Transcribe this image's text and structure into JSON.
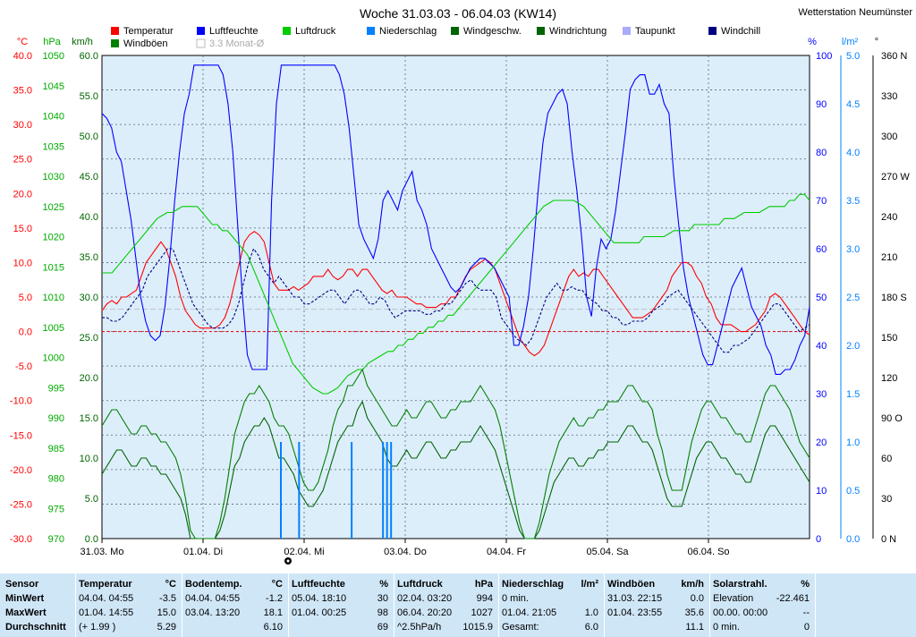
{
  "chart_data": {
    "type": "line",
    "title": "Woche 31.03.03 - 06.04.03 (KW14)",
    "station": "Wetterstation Neumünster",
    "legend": [
      {
        "name": "Temperatur",
        "color": "#ff0000"
      },
      {
        "name": "Luftfeuchte",
        "color": "#0000ff"
      },
      {
        "name": "Luftdruck",
        "color": "#00cc00"
      },
      {
        "name": "Niederschlag",
        "color": "#0080ff"
      },
      {
        "name": "Windgeschw.",
        "color": "#006400"
      },
      {
        "name": "Windrichtung",
        "color": "#006400"
      },
      {
        "name": "Taupunkt",
        "color": "#aaaaff"
      },
      {
        "name": "Windchill",
        "color": "#000080"
      },
      {
        "name": "Windböen",
        "color": "#008000"
      },
      {
        "name": "3.3 Monat-Ø",
        "color": "#cccccc"
      }
    ],
    "axes": {
      "temp": {
        "unit": "°C",
        "color": "#ff0000",
        "ticks": [
          "40.0",
          "35.0",
          "30.0",
          "25.0",
          "20.0",
          "15.0",
          "10.0",
          "5.0",
          "0.0",
          "-5.0",
          "-10.0",
          "-15.0",
          "-20.0",
          "-25.0",
          "-30.0"
        ],
        "range": [
          -30,
          40
        ]
      },
      "pressure": {
        "unit": "hPa",
        "color": "#00aa00",
        "ticks": [
          "1050",
          "1045",
          "1040",
          "1035",
          "1030",
          "1025",
          "1020",
          "1015",
          "1010",
          "1005",
          "1000",
          "995",
          "990",
          "985",
          "980",
          "975",
          "970"
        ],
        "range": [
          970,
          1050
        ]
      },
      "wind": {
        "unit": "km/h",
        "color": "#006400",
        "ticks": [
          "60.0",
          "55.0",
          "50.0",
          "45.0",
          "40.0",
          "35.0",
          "30.0",
          "25.0",
          "20.0",
          "15.0",
          "10.0",
          "5.0",
          "0.0"
        ],
        "range": [
          0,
          60
        ]
      },
      "humidity": {
        "unit": "%",
        "color": "#0000ff",
        "ticks": [
          "100",
          "90",
          "80",
          "70",
          "60",
          "50",
          "40",
          "30",
          "20",
          "10",
          "0"
        ],
        "range": [
          0,
          100
        ]
      },
      "rain": {
        "unit": "l/m²",
        "color": "#0080ff",
        "ticks": [
          "5.0",
          "4.5",
          "4.0",
          "3.5",
          "3.0",
          "2.5",
          "2.0",
          "1.5",
          "1.0",
          "0.5",
          "0.0"
        ],
        "range": [
          0,
          5
        ]
      },
      "direction": {
        "unit": "°",
        "color": "#000000",
        "ticks": [
          "360 N",
          "330",
          "300",
          "270 W",
          "240",
          "210",
          "180 S",
          "150",
          "120",
          "90 O",
          "60",
          "30",
          "0 N"
        ],
        "range": [
          0,
          360
        ]
      }
    },
    "x_ticks": [
      "31.03. Mo",
      "01.04. Di",
      "02.04. Mi",
      "03.04. Do",
      "04.04. Fr",
      "05.04. Sa",
      "06.04. So"
    ],
    "series": [
      {
        "name": "Temperatur",
        "color": "#ff0000",
        "axis": "temp",
        "values": [
          3,
          4,
          4.5,
          4,
          5,
          5,
          5.5,
          6,
          8,
          10,
          11,
          12,
          13,
          12,
          10,
          8,
          5,
          3,
          2,
          1,
          0.5,
          0.5,
          0.5,
          0.5,
          1,
          2,
          4,
          7,
          10,
          13,
          14,
          14.5,
          14,
          13,
          10,
          7,
          6,
          6,
          6,
          6.5,
          6,
          6.5,
          7,
          8,
          8,
          8,
          9,
          8,
          7.5,
          8,
          9,
          9,
          8,
          9,
          9,
          8,
          7,
          6,
          5.5,
          6,
          5,
          5,
          5,
          4.5,
          4,
          4,
          3.5,
          3.5,
          3.5,
          4,
          4,
          5,
          5,
          6.5,
          8,
          9,
          9.5,
          10,
          10.5,
          10,
          9,
          7,
          5,
          3,
          1,
          -1,
          -2,
          -3,
          -3.5,
          -3,
          -2,
          0,
          2,
          4,
          6,
          8,
          9,
          8,
          8.5,
          8,
          9,
          9,
          8,
          7,
          6,
          5,
          4,
          3,
          2,
          2,
          2,
          2.5,
          3,
          4,
          5,
          6,
          8,
          9,
          10,
          10,
          9.5,
          8,
          7,
          5,
          4,
          2,
          1,
          1,
          1,
          0.5,
          0,
          0,
          0.5,
          1,
          2,
          3,
          5,
          5.5,
          5,
          4,
          3,
          2,
          1,
          0,
          -0.5
        ]
      },
      {
        "name": "Luftfeuchte",
        "color": "#0000ff",
        "axis": "humidity",
        "values": [
          88,
          87,
          85,
          80,
          78,
          72,
          66,
          58,
          50,
          45,
          42,
          41,
          42,
          48,
          58,
          70,
          80,
          88,
          92,
          98,
          98,
          98,
          98,
          98,
          98,
          96,
          90,
          80,
          65,
          50,
          38,
          35,
          35,
          35,
          35,
          70,
          90,
          98,
          98,
          98,
          98,
          98,
          98,
          98,
          98,
          98,
          98,
          98,
          98,
          96,
          92,
          85,
          75,
          65,
          62,
          60,
          58,
          62,
          70,
          72,
          70,
          68,
          72,
          74,
          76,
          70,
          68,
          65,
          60,
          58,
          56,
          54,
          52,
          51,
          52,
          54,
          56,
          57,
          58,
          58,
          57,
          56,
          54,
          52,
          50,
          40,
          40,
          44,
          50,
          60,
          72,
          82,
          88,
          90,
          92,
          93,
          90,
          80,
          72,
          62,
          50,
          46,
          56,
          62,
          60,
          62,
          68,
          76,
          84,
          93,
          95,
          96,
          96,
          92,
          92,
          94,
          90,
          88,
          75,
          65,
          56,
          50,
          46,
          42,
          38,
          36,
          36,
          40,
          44,
          48,
          52,
          54,
          56,
          52,
          48,
          46,
          44,
          40,
          38,
          34,
          34,
          35,
          35,
          37,
          40,
          42,
          48
        ]
      },
      {
        "name": "Luftdruck",
        "color": "#00cc00",
        "axis": "pressure",
        "values": [
          1014,
          1014,
          1014,
          1015,
          1016,
          1017,
          1018,
          1019,
          1020,
          1021,
          1022,
          1023,
          1023.5,
          1024,
          1024,
          1024.5,
          1025,
          1025,
          1025,
          1025,
          1024,
          1023,
          1022,
          1022,
          1021,
          1021,
          1020,
          1019,
          1018,
          1017,
          1015,
          1013,
          1011,
          1009,
          1007,
          1005,
          1003,
          1001,
          999,
          998,
          997,
          996,
          995,
          994.5,
          994,
          994,
          994.5,
          995,
          996,
          997,
          997.5,
          998,
          998,
          999,
          999.5,
          1000,
          1000.5,
          1001,
          1001,
          1002,
          1002,
          1003,
          1003,
          1004,
          1004,
          1005,
          1005,
          1006,
          1006,
          1007,
          1007,
          1008,
          1009,
          1010,
          1011,
          1012,
          1013,
          1014,
          1015,
          1016,
          1017,
          1018,
          1019,
          1020,
          1021,
          1022,
          1023,
          1024,
          1025,
          1025.5,
          1026,
          1026,
          1026,
          1026,
          1026,
          1025.5,
          1025,
          1024,
          1023,
          1022,
          1021,
          1020,
          1019,
          1019,
          1019,
          1019,
          1019,
          1019,
          1020,
          1020,
          1020,
          1020,
          1020,
          1020.5,
          1021,
          1021,
          1021,
          1021,
          1022,
          1022,
          1022,
          1022,
          1022,
          1022,
          1023,
          1023,
          1023,
          1023.5,
          1024,
          1024,
          1024,
          1024,
          1024.5,
          1025,
          1025,
          1025,
          1025,
          1026,
          1026,
          1027,
          1027,
          1026
        ]
      },
      {
        "name": "Taupunkt",
        "color": "#000080",
        "axis": "temp",
        "dashed": true,
        "values": [
          2,
          2,
          1.5,
          1.5,
          2,
          3,
          4,
          5,
          6,
          8,
          9,
          10,
          11,
          12,
          12,
          10,
          8,
          6,
          4,
          3,
          2,
          1,
          0.5,
          0.5,
          0.5,
          1,
          2,
          4,
          7,
          10,
          12,
          11,
          9,
          8,
          7,
          8,
          7,
          6,
          5,
          5,
          4,
          4,
          4.5,
          5,
          5.5,
          6,
          6,
          5,
          4,
          5,
          6,
          6,
          5,
          4,
          4,
          5,
          4.5,
          3,
          2,
          2.5,
          3,
          3,
          3,
          3,
          2.5,
          2.5,
          3,
          3,
          4,
          4,
          5,
          6,
          7,
          7.5,
          6.5,
          6,
          6,
          6,
          5,
          2,
          1,
          0,
          -1,
          -1.5,
          -2,
          -1,
          1,
          3,
          5,
          6,
          7,
          6,
          6,
          6.5,
          6,
          6,
          5,
          4.5,
          4,
          3,
          3,
          2,
          2,
          1,
          1,
          1.5,
          1.5,
          1.5,
          2,
          3,
          3.5,
          4,
          5,
          5.5,
          6,
          5,
          4,
          3,
          2,
          1,
          0,
          -1,
          -2,
          -3,
          -3,
          -2,
          -2,
          -1.5,
          -1,
          0,
          1,
          2,
          3,
          4,
          4,
          3,
          2,
          1,
          0,
          0.5,
          1
        ]
      },
      {
        "name": "Windgeschw.",
        "color": "#006400",
        "axis": "wind",
        "values": [
          8,
          9,
          10,
          11,
          11,
          10,
          9,
          9,
          10,
          10,
          9,
          9,
          8,
          8,
          7,
          6,
          5,
          3,
          0,
          0,
          0,
          0,
          0,
          0,
          1,
          3,
          6,
          9,
          10,
          12,
          13,
          14,
          14,
          15,
          14,
          12,
          10,
          10,
          9,
          8,
          6,
          5,
          4,
          4,
          5,
          6,
          8,
          10,
          12,
          13,
          14,
          14,
          16,
          17,
          15,
          14,
          13,
          12,
          10,
          9,
          9,
          10,
          11,
          10,
          10,
          11,
          12,
          12,
          11,
          10,
          10,
          11,
          11,
          12,
          12,
          12,
          13,
          14,
          13,
          12,
          11,
          9,
          7,
          5,
          3,
          1,
          0,
          0,
          0,
          1,
          3,
          5,
          7,
          8,
          9,
          10,
          10,
          9,
          9,
          10,
          10,
          11,
          11,
          12,
          12,
          12,
          13,
          14,
          14,
          13,
          12,
          12,
          11,
          9,
          7,
          5,
          4,
          4,
          4,
          6,
          8,
          10,
          11,
          12,
          12,
          11,
          10,
          10,
          9,
          8,
          8,
          7,
          7,
          9,
          11,
          13,
          14,
          14,
          13,
          12,
          11,
          10,
          9,
          8,
          7
        ]
      },
      {
        "name": "Windböen",
        "color": "#008000",
        "axis": "wind",
        "values": [
          14,
          15,
          16,
          16,
          15,
          14,
          13,
          13,
          14,
          14,
          13,
          13,
          12,
          12,
          11,
          10,
          8,
          5,
          1,
          0,
          0,
          0,
          0,
          0,
          2,
          5,
          9,
          13,
          15,
          17,
          18,
          18,
          19,
          18,
          17,
          15,
          14,
          14,
          13,
          11,
          9,
          7,
          6,
          6,
          7,
          9,
          11,
          14,
          16,
          17,
          19,
          19,
          20,
          21,
          19,
          18,
          17,
          16,
          15,
          14,
          14,
          15,
          16,
          15,
          15,
          16,
          17,
          17,
          16,
          15,
          15,
          16,
          16,
          17,
          17,
          17,
          18,
          19,
          18,
          17,
          16,
          14,
          11,
          8,
          5,
          2,
          0,
          0,
          0,
          2,
          5,
          8,
          10,
          12,
          13,
          14,
          15,
          14,
          14,
          15,
          15,
          16,
          16,
          17,
          17,
          17,
          18,
          19,
          19,
          18,
          17,
          17,
          16,
          13,
          11,
          8,
          6,
          6,
          6,
          9,
          12,
          14,
          16,
          17,
          17,
          16,
          15,
          15,
          14,
          13,
          13,
          12,
          12,
          14,
          16,
          18,
          19,
          19,
          18,
          17,
          16,
          14,
          12,
          11,
          10
        ]
      }
    ],
    "precipitation": [
      {
        "day_frac": 1.77,
        "value": 1.0
      },
      {
        "day_frac": 1.95,
        "value": 1.0
      },
      {
        "day_frac": 2.47,
        "value": 1.0
      },
      {
        "day_frac": 2.78,
        "value": 1.0
      },
      {
        "day_frac": 2.82,
        "value": 1.0
      },
      {
        "day_frac": 2.86,
        "value": 1.0
      }
    ]
  },
  "stats": {
    "row_labels": [
      "Sensor",
      "MinWert",
      "MaxWert",
      "Durchschnitt"
    ],
    "columns": [
      {
        "title": "Temperatur",
        "unit": "°C",
        "rows": [
          [
            "04.04.  04:55",
            "-3.5"
          ],
          [
            "01.04.  14:55",
            "15.0"
          ],
          [
            "(+ 1.99 )",
            "5.29"
          ]
        ]
      },
      {
        "title": "Bodentemp.",
        "unit": "°C",
        "rows": [
          [
            "04.04.  04:55",
            "-1.2"
          ],
          [
            "03.04.  13:20",
            "18.1"
          ],
          [
            "",
            "6.10"
          ]
        ]
      },
      {
        "title": "Luftfeuchte",
        "unit": "%",
        "rows": [
          [
            "05.04.  18:10",
            "30"
          ],
          [
            "01.04.  00:25",
            "98"
          ],
          [
            "",
            "69"
          ]
        ]
      },
      {
        "title": "Luftdruck",
        "unit": "hPa",
        "rows": [
          [
            "02.04.  03:20",
            "994"
          ],
          [
            "06.04.  20:20",
            "1027"
          ],
          [
            "^2.5hPa/h",
            "1015.9"
          ]
        ]
      },
      {
        "title": "Niederschlag",
        "unit": "l/m²",
        "rows": [
          [
            "0 min.",
            ""
          ],
          [
            "01.04.  21:05",
            "1.0"
          ],
          [
            "Gesamt:",
            "6.0"
          ]
        ]
      },
      {
        "title": "Windböen",
        "unit": "km/h",
        "rows": [
          [
            "31.03.  22:15",
            "0.0"
          ],
          [
            "01.04.  23:55",
            "35.6"
          ],
          [
            "",
            "11.1"
          ]
        ]
      },
      {
        "title": "Solarstrahl.",
        "unit": "%",
        "rows": [
          [
            "Elevation",
            "-22.461"
          ],
          [
            "00.00.  00:00",
            "--"
          ],
          [
            "0 min.",
            "0"
          ]
        ]
      }
    ]
  }
}
